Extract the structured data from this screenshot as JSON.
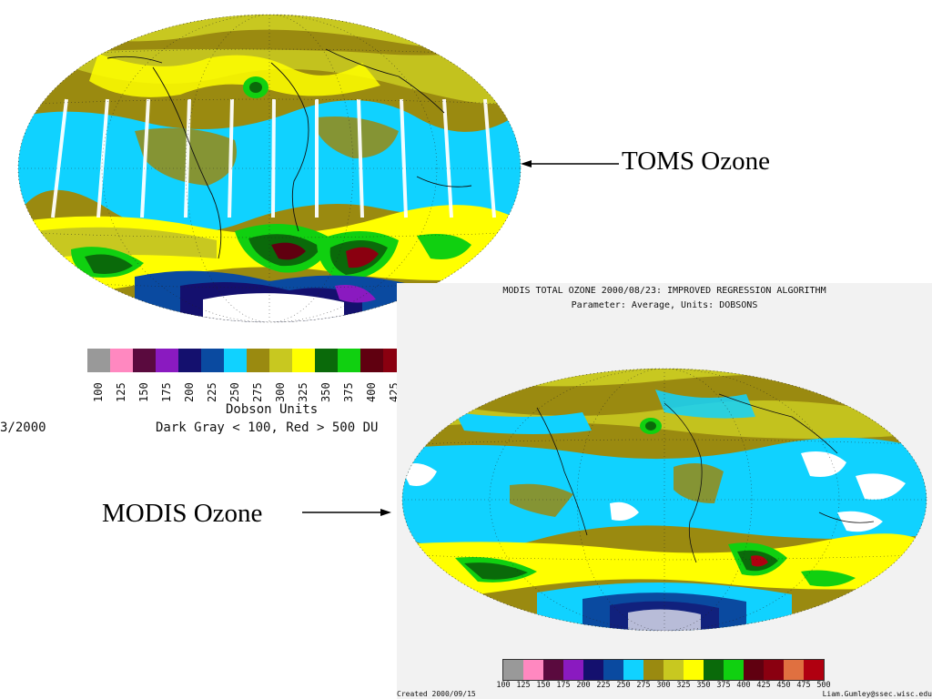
{
  "slide": {
    "toms_label": "TOMS Ozone",
    "modis_label": "MODIS Ozone"
  },
  "toms": {
    "colorbar": {
      "colors": [
        "#999999",
        "#ff88c0",
        "#5a0a3e",
        "#8a1ac0",
        "#14106e",
        "#0a4aa0",
        "#10d2ff",
        "#9a8a10",
        "#c8c820",
        "#ffff00",
        "#0a6a0a",
        "#10d010",
        "#600010",
        "#8a0010"
      ],
      "ticks": [
        "100",
        "125",
        "150",
        "175",
        "200",
        "225",
        "250",
        "275",
        "300",
        "325",
        "350",
        "375",
        "400",
        "425"
      ]
    },
    "units_label": "Dobson Units",
    "range_note": "Dark Gray < 100, Red > 500 DU",
    "date_fragment": "3/2000"
  },
  "modis": {
    "title": "MODIS TOTAL OZONE 2000/08/23: IMPROVED REGRESSION ALGORITHM",
    "parameter": "Parameter: Average, Units: DOBSONS",
    "colorbar": {
      "colors": [
        "#999999",
        "#ff88c0",
        "#5a0a3e",
        "#8a1ac0",
        "#14106e",
        "#0a4aa0",
        "#10d2ff",
        "#9a8a10",
        "#c8c820",
        "#ffff00",
        "#0a6a0a",
        "#10d010",
        "#600010",
        "#8a0010",
        "#e07040",
        "#b00010"
      ],
      "ticks": [
        "100",
        "125",
        "150",
        "175",
        "200",
        "225",
        "250",
        "275",
        "300",
        "325",
        "350",
        "375",
        "400",
        "425",
        "450",
        "475",
        "500"
      ]
    },
    "created": "Created 2000/09/15",
    "author": "Liam.Gumley@ssec.wisc.edu"
  },
  "map_colors": {
    "cyan": "#10d2ff",
    "olive": "#9a8a10",
    "yellow_olive": "#c8c820",
    "yellow": "#ffff00",
    "dark_green": "#0a6a0a",
    "green": "#10d010",
    "blue": "#0a4aa0",
    "navy": "#14106e",
    "purple": "#8a1ac0",
    "maroon": "#600010",
    "red": "#b00010",
    "white": "#ffffff"
  }
}
